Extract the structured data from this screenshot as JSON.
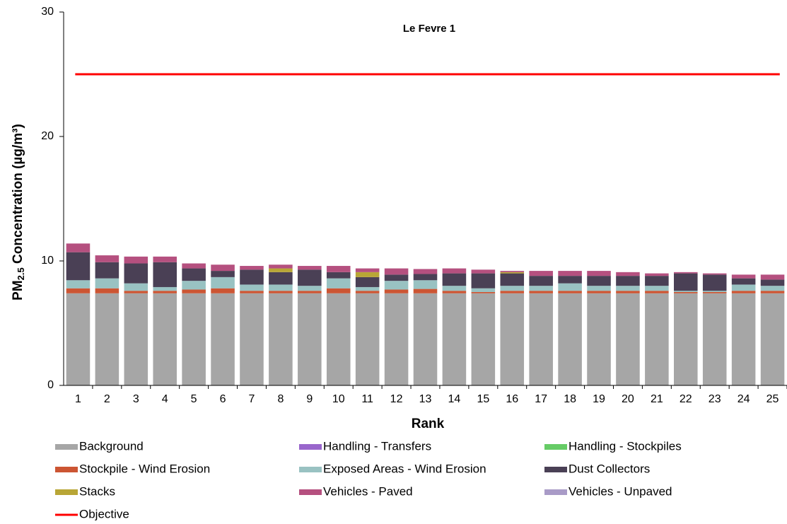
{
  "chart_data": {
    "type": "stacked_bar",
    "title": "Le Fevre 1",
    "ylabel": {
      "main": "PM",
      "sub": "2.5",
      "rest": " Concentration (µg/m³)"
    },
    "xlabel": "Rank",
    "categories": [
      "1",
      "2",
      "3",
      "4",
      "5",
      "6",
      "7",
      "8",
      "9",
      "10",
      "11",
      "12",
      "13",
      "14",
      "15",
      "16",
      "17",
      "18",
      "19",
      "20",
      "21",
      "22",
      "23",
      "24",
      "25"
    ],
    "ylim": [
      0,
      30
    ],
    "yticks": [
      0,
      10,
      20,
      30
    ],
    "series": [
      {
        "name": "Background",
        "color": "#a6a6a6",
        "values": [
          7.4,
          7.4,
          7.4,
          7.4,
          7.4,
          7.4,
          7.4,
          7.4,
          7.4,
          7.4,
          7.4,
          7.4,
          7.4,
          7.4,
          7.4,
          7.4,
          7.4,
          7.4,
          7.4,
          7.4,
          7.4,
          7.4,
          7.4,
          7.4,
          7.4
        ]
      },
      {
        "name": "Handling - Transfers",
        "color": "#9966cc",
        "values": [
          0,
          0,
          0,
          0,
          0,
          0,
          0,
          0,
          0,
          0,
          0,
          0,
          0,
          0,
          0,
          0,
          0,
          0,
          0,
          0,
          0,
          0,
          0,
          0,
          0
        ]
      },
      {
        "name": "Handling - Stockpiles",
        "color": "#66cc66",
        "values": [
          0,
          0,
          0,
          0,
          0,
          0,
          0,
          0,
          0,
          0,
          0,
          0,
          0,
          0,
          0,
          0,
          0,
          0,
          0,
          0,
          0,
          0,
          0,
          0,
          0
        ]
      },
      {
        "name": "Stockpile - Wind Erosion",
        "color": "#cc5533",
        "values": [
          0.4,
          0.4,
          0.2,
          0.2,
          0.3,
          0.4,
          0.2,
          0.2,
          0.2,
          0.4,
          0.2,
          0.3,
          0.35,
          0.2,
          0.1,
          0.2,
          0.2,
          0.2,
          0.2,
          0.2,
          0.2,
          0.1,
          0.1,
          0.2,
          0.2
        ]
      },
      {
        "name": "Exposed Areas - Wind Erosion",
        "color": "#99c2c2",
        "values": [
          0.65,
          0.8,
          0.6,
          0.3,
          0.7,
          0.9,
          0.5,
          0.5,
          0.4,
          0.8,
          0.3,
          0.7,
          0.7,
          0.4,
          0.3,
          0.4,
          0.4,
          0.6,
          0.4,
          0.4,
          0.4,
          0.1,
          0.1,
          0.5,
          0.4
        ]
      },
      {
        "name": "Dust Collectors",
        "color": "#4a4055",
        "values": [
          2.25,
          1.3,
          1.6,
          2.0,
          1.0,
          0.5,
          1.2,
          1.0,
          1.3,
          0.5,
          0.8,
          0.5,
          0.5,
          1.0,
          1.2,
          1.0,
          0.8,
          0.6,
          0.8,
          0.8,
          0.8,
          1.4,
          1.3,
          0.5,
          0.5
        ]
      },
      {
        "name": "Stacks",
        "color": "#b8a636",
        "values": [
          0,
          0,
          0,
          0,
          0,
          0,
          0,
          0.3,
          0,
          0,
          0.4,
          0,
          0,
          0,
          0,
          0.1,
          0,
          0,
          0,
          0,
          0,
          0,
          0,
          0,
          0
        ]
      },
      {
        "name": "Vehicles - Paved",
        "color": "#b5507f",
        "values": [
          0.7,
          0.55,
          0.55,
          0.45,
          0.4,
          0.5,
          0.3,
          0.3,
          0.3,
          0.5,
          0.3,
          0.5,
          0.4,
          0.4,
          0.3,
          0.1,
          0.4,
          0.4,
          0.4,
          0.3,
          0.2,
          0.1,
          0.1,
          0.3,
          0.4
        ]
      },
      {
        "name": "Vehicles - Unpaved",
        "color": "#a99bc7",
        "values": [
          0,
          0,
          0,
          0,
          0,
          0,
          0,
          0,
          0,
          0,
          0,
          0,
          0,
          0,
          0,
          0,
          0,
          0,
          0,
          0,
          0,
          0,
          0,
          0,
          0
        ]
      }
    ],
    "objective": {
      "name": "Objective",
      "value": 25,
      "color": "#ff0000"
    }
  }
}
